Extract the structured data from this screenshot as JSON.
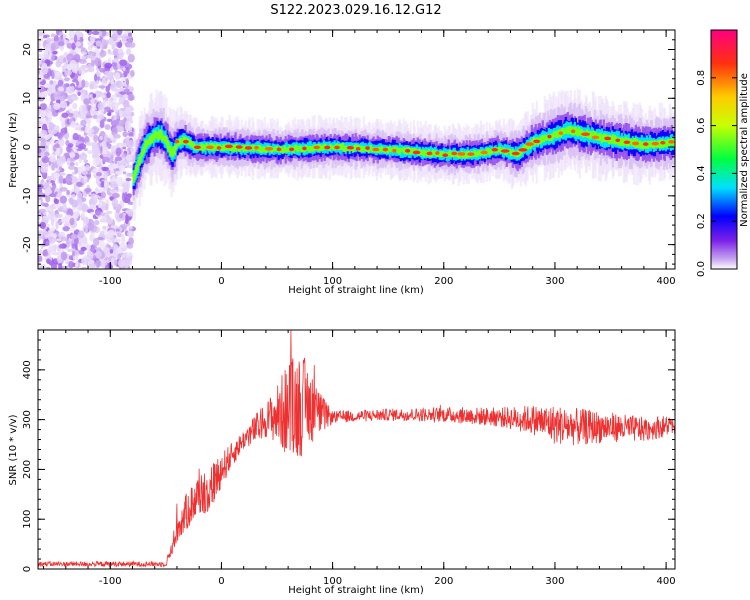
{
  "figure": {
    "title": "S122.2023.029.16.12.G12"
  },
  "chart_data": [
    {
      "type": "heatmap",
      "xlabel": "Height of straight line (km)",
      "ylabel": "Frequency (Hz)",
      "xlim": [
        -165,
        408
      ],
      "ylim": [
        -25,
        24
      ],
      "xticks": [
        -100,
        0,
        100,
        200,
        300,
        400
      ],
      "yticks": [
        -20,
        -10,
        0,
        10,
        20
      ],
      "grid": false,
      "colorbar": {
        "label": "Normalized spectral amplitude",
        "range": [
          0,
          1
        ],
        "ticks": [
          0.0,
          0.2,
          0.4,
          0.6,
          0.8
        ],
        "colors": [
          "#ffffff",
          "#c9a8f0",
          "#7a20e8",
          "#0000ff",
          "#00e0ff",
          "#00ff40",
          "#c8ff00",
          "#ffcc00",
          "#ff3010",
          "#ff0080"
        ]
      },
      "noise_region_x": [
        -165,
        -80
      ],
      "ridge": {
        "x": [
          -80,
          -75,
          -70,
          -65,
          -60,
          -55,
          -50,
          -45,
          -40,
          -35,
          -25,
          0,
          50,
          100,
          150,
          200,
          225,
          250,
          265,
          280,
          300,
          310,
          330,
          350,
          380,
          408
        ],
        "y": [
          -6.5,
          -3,
          0,
          1.5,
          2.5,
          2.5,
          1,
          -1.5,
          1,
          1.5,
          0,
          0,
          -0.5,
          0,
          -0.5,
          -1.5,
          -1.5,
          -0.5,
          -1.5,
          1,
          2.5,
          3.5,
          2.5,
          1.5,
          0.5,
          1
        ],
        "width": [
          1.5,
          1.5,
          1.5,
          1.5,
          1.5,
          1.5,
          1.5,
          1.5,
          1.2,
          1.2,
          1.0,
          1.0,
          1.0,
          1.0,
          1.0,
          1.0,
          1.0,
          1.0,
          1.2,
          1.3,
          1.4,
          1.4,
          1.4,
          1.4,
          1.3,
          1.3
        ]
      }
    },
    {
      "type": "line",
      "xlabel": "Height of straight line (km)",
      "ylabel": "SNR (10 * v/v)",
      "xlim": [
        -165,
        408
      ],
      "ylim": [
        0,
        480
      ],
      "xticks": [
        -100,
        0,
        100,
        200,
        300,
        400
      ],
      "yticks": [
        0,
        100,
        200,
        300,
        400
      ],
      "grid": false,
      "series": [
        {
          "color": "#ee3030",
          "x": [
            -165,
            -50,
            -45,
            -40,
            -30,
            -20,
            -10,
            0,
            10,
            20,
            30,
            40,
            50,
            60,
            70,
            80,
            90,
            100,
            150,
            200,
            250,
            280,
            300,
            320,
            350,
            380,
            408
          ],
          "y": [
            10,
            10,
            40,
            80,
            120,
            150,
            160,
            200,
            230,
            260,
            280,
            300,
            310,
            320,
            330,
            330,
            310,
            305,
            310,
            310,
            305,
            300,
            290,
            285,
            285,
            280,
            290
          ],
          "noise_amp": [
            5,
            5,
            15,
            30,
            40,
            45,
            50,
            35,
            25,
            20,
            30,
            35,
            60,
            100,
            110,
            80,
            40,
            12,
            12,
            15,
            20,
            30,
            40,
            38,
            30,
            25,
            20
          ]
        }
      ]
    }
  ]
}
